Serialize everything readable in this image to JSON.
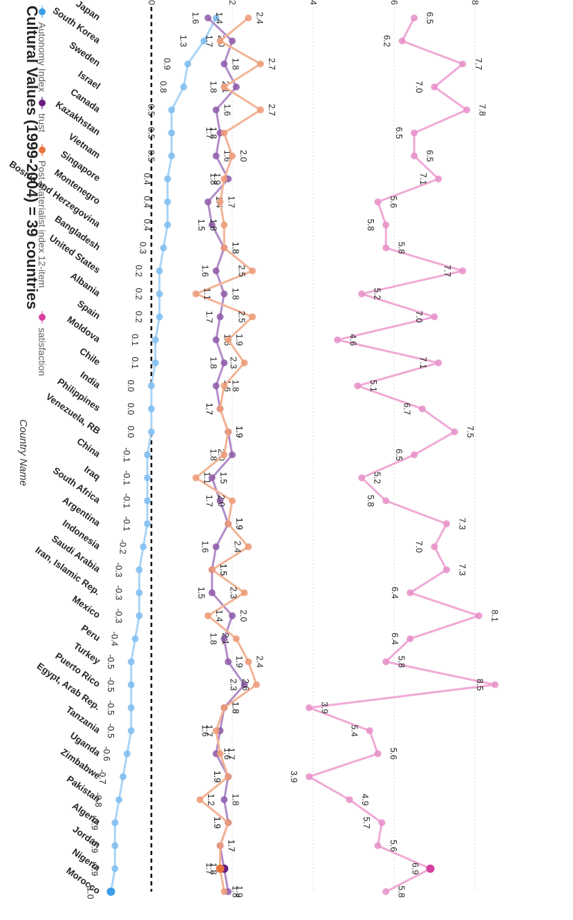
{
  "chart_data": {
    "type": "line",
    "title": "Cultural Values (1999-2004) = 39 countries",
    "xlabel": "Country Name",
    "ylabel": "Autonomy Index, trust, Post-Materialist index 12-item and satisfaction",
    "ylim": [
      -1.5,
      8.5
    ],
    "yticks": [
      0,
      2,
      4,
      6,
      8
    ],
    "grid": true,
    "legend_position": "top",
    "baseline": {
      "value": 0,
      "style": "dashed"
    },
    "categories": [
      "Japan",
      "South Korea",
      "Sweden",
      "Israel",
      "Canada",
      "Kazakhstan",
      "Vietnam",
      "Singapore",
      "Montenegro",
      "Bosnia and Herzegovina",
      "Bangladesh",
      "United States",
      "Albania",
      "Spain",
      "Moldova",
      "Chile",
      "India",
      "Philippines",
      "Venezuela, RB",
      "China",
      "Iraq",
      "South Africa",
      "Argentina",
      "Indonesia",
      "Saudi Arabia",
      "Iran, Islamic Rep.",
      "Mexico",
      "Peru",
      "Turkey",
      "Puerto Rico",
      "Egypt, Arab Rep.",
      "Tanzania",
      "Uganda",
      "Zimbabwe",
      "Pakistan",
      "Algeria",
      "Jordan",
      "Nigeria",
      "Morocco"
    ],
    "series": [
      {
        "name": "Autonomy Index",
        "color": "#a9d4f6",
        "marker_color": "#7ebcf0",
        "highlight_color": "#3a9de8",
        "values": [
          1.6,
          1.3,
          0.9,
          0.8,
          0.5,
          0.5,
          0.5,
          0.4,
          0.4,
          0.4,
          0.3,
          0.2,
          0.2,
          0.2,
          0.1,
          0.1,
          0.0,
          0.0,
          0.0,
          -0.1,
          -0.1,
          -0.1,
          -0.1,
          -0.2,
          -0.3,
          -0.3,
          -0.3,
          -0.4,
          -0.5,
          -0.5,
          -0.5,
          -0.5,
          -0.6,
          -0.7,
          -0.8,
          -0.9,
          -0.9,
          -0.9,
          -1.0
        ],
        "labels": [
          "1.6",
          "1.3",
          "0.9",
          "0.8",
          "0.5",
          "0.5",
          "0.5",
          "0.4",
          "0.4",
          "0.4",
          "0.3",
          "0.2",
          "0.2",
          "0.2",
          "0.1",
          "0.1",
          "0.0",
          "0.0",
          "0.0",
          "-0.1",
          "-0.1",
          "-0.1",
          "-0.1",
          "-0.2",
          "-0.3",
          "-0.3",
          "-0.3",
          "-0.4",
          "-0.5",
          "-0.5",
          "-0.5",
          "-0.5",
          "-0.6",
          "-0.7",
          "-0.8",
          "-0.9",
          "-0.9",
          "-0.9",
          "-1.0"
        ]
      },
      {
        "name": "trust",
        "color": "#b08cc8",
        "marker_color": "#8e5aa8",
        "highlight_color": "#6b1f7f",
        "values": [
          1.4,
          2.0,
          1.8,
          2.1,
          1.6,
          1.7,
          1.6,
          1.9,
          1.4,
          1.5,
          1.8,
          1.6,
          1.8,
          1.7,
          1.6,
          1.8,
          1.6,
          1.7,
          1.9,
          2.0,
          1.5,
          1.7,
          1.9,
          1.6,
          1.5,
          1.5,
          2.0,
          1.8,
          1.9,
          2.3,
          1.8,
          1.7,
          1.6,
          1.9,
          1.8,
          1.9,
          1.7,
          1.8,
          1.9
        ],
        "labels": [
          "1.4",
          "2.0",
          "1.8",
          "2.1",
          "1.6",
          "1.7",
          "1.6",
          "1.9",
          "1.4",
          "1.5",
          "1.8",
          "1.6",
          "1.8",
          "1.7",
          "1.6",
          "1.8",
          "1.6",
          "1.7",
          "1.9",
          "2.0",
          "1.5",
          "1.7",
          "1.9",
          "1.6",
          "1.5",
          "1.5",
          "2.0",
          "1.8",
          "1.9",
          "2.3",
          "1.8",
          "1.7",
          "1.6",
          "1.9",
          "1.8",
          "1.9",
          "1.7",
          "1.8",
          "1.9"
        ]
      },
      {
        "name": "Post-Materialist index 12-item",
        "color": "#f3b394",
        "marker_color": "#ec9a78",
        "highlight_color": "#e8743b",
        "values": [
          2.4,
          1.7,
          2.7,
          1.8,
          2.7,
          1.8,
          2.0,
          1.8,
          1.7,
          1.8,
          1.8,
          2.5,
          1.1,
          2.5,
          1.9,
          2.3,
          1.8,
          1.7,
          1.9,
          1.8,
          1.1,
          2.0,
          1.9,
          2.4,
          1.5,
          2.3,
          1.4,
          2.1,
          2.4,
          2.6,
          1.8,
          1.6,
          1.7,
          1.9,
          1.2,
          1.9,
          1.7,
          1.7,
          1.8
        ],
        "labels": [
          "2.4",
          "1.7",
          "2.7",
          "1.8",
          "2.7",
          "1.8",
          "2.0",
          "1.8",
          "1.7",
          "1.8",
          "1.8",
          "2.5",
          "1.1",
          "2.5",
          "1.9",
          "2.3",
          "1.8",
          "1.7",
          "1.9",
          "1.8",
          "1.1",
          "2.0",
          "1.9",
          "2.4",
          "1.5",
          "2.3",
          "1.4",
          "2.1",
          "2.4",
          "2.6",
          "1.8",
          "1.6",
          "1.7",
          "1.9",
          "1.2",
          "1.9",
          "1.7",
          "1.7",
          "1.8"
        ]
      },
      {
        "name": "satisfaction",
        "color": "#f0a9d6",
        "marker_color": "#e68fc8",
        "highlight_color": "#d6409f",
        "values": [
          6.5,
          6.2,
          7.7,
          7.0,
          7.8,
          6.5,
          6.5,
          7.1,
          5.6,
          5.8,
          5.8,
          7.7,
          5.2,
          7.0,
          4.6,
          7.1,
          5.1,
          6.7,
          7.5,
          6.5,
          5.2,
          5.8,
          7.3,
          7.0,
          7.3,
          6.4,
          8.1,
          6.4,
          5.8,
          8.5,
          3.9,
          5.4,
          5.6,
          3.9,
          4.9,
          5.7,
          5.6,
          6.9,
          5.8
        ],
        "labels": [
          "6.5",
          "6.2",
          "7.7",
          "7.0",
          "7.8",
          "6.5",
          "6.5",
          "7.1",
          "5.6",
          "5.8",
          "5.8",
          "7.7",
          "5.2",
          "7.0",
          "4.6",
          "7.1",
          "5.1",
          "6.7",
          "7.5",
          "6.5",
          "5.2",
          "5.8",
          "7.3",
          "7.0",
          "7.3",
          "6.4",
          "8.1",
          "6.4",
          "5.8",
          "8.5",
          "3.9",
          "5.4",
          "5.6",
          "3.9",
          "4.9",
          "5.7",
          "5.6",
          "6.9",
          "5.8"
        ]
      }
    ]
  }
}
